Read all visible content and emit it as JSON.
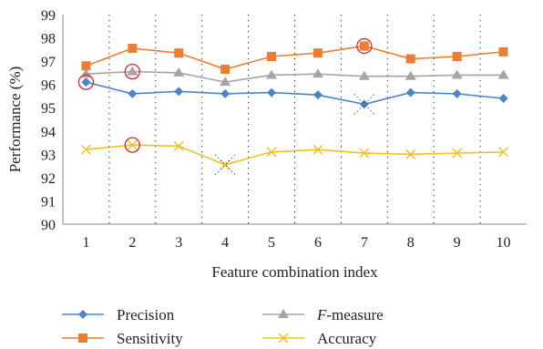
{
  "chart_data": {
    "type": "line",
    "xlabel": "Feature combination index",
    "ylabel": "Performance (%)",
    "x": [
      1,
      2,
      3,
      4,
      5,
      6,
      7,
      8,
      9,
      10
    ],
    "ylim": [
      90,
      99
    ],
    "yticks": [
      90,
      91,
      92,
      93,
      94,
      95,
      96,
      97,
      98,
      99
    ],
    "grid": "vertical-dotted",
    "legend_placement": "bottom",
    "series": [
      {
        "name": "Precision",
        "marker": "diamond",
        "color": "#4a86c6",
        "values": [
          96.1,
          95.6,
          95.7,
          95.6,
          95.65,
          95.55,
          95.15,
          95.65,
          95.6,
          95.4
        ]
      },
      {
        "name": "Sensitivity",
        "marker": "square",
        "color": "#ed7d31",
        "values": [
          96.8,
          97.55,
          97.35,
          96.65,
          97.2,
          97.35,
          97.65,
          97.1,
          97.2,
          97.4
        ]
      },
      {
        "name": "F-measure",
        "marker": "triangle",
        "color": "#a5a5a5",
        "values": [
          96.45,
          96.55,
          96.5,
          96.1,
          96.4,
          96.45,
          96.35,
          96.35,
          96.4,
          96.4
        ]
      },
      {
        "name": "Accuracy",
        "marker": "x",
        "color": "#f0c020",
        "values": [
          93.2,
          93.4,
          93.35,
          92.55,
          93.1,
          93.2,
          93.05,
          93.0,
          93.05,
          93.1
        ]
      }
    ],
    "legend": {
      "items": [
        {
          "prefix": "",
          "italic": "",
          "text": "Precision"
        },
        {
          "prefix": "",
          "italic": "F",
          "text": "-measure"
        },
        {
          "prefix": "",
          "italic": "",
          "text": "Sensitivity"
        },
        {
          "prefix": "",
          "italic": "",
          "text": "Accuracy"
        }
      ]
    },
    "highlights": [
      {
        "series": "Precision",
        "x": 1,
        "color": "#d9262b"
      },
      {
        "series": "F-measure",
        "x": 2,
        "color": "#d9262b"
      },
      {
        "series": "Sensitivity",
        "x": 7,
        "color": "#d9262b"
      },
      {
        "series": "Accuracy",
        "x": 2,
        "color": "#d9262b"
      }
    ],
    "dotted_minima": [
      {
        "series": "Precision",
        "x": 7
      },
      {
        "series": "Accuracy",
        "x": 4
      }
    ]
  }
}
